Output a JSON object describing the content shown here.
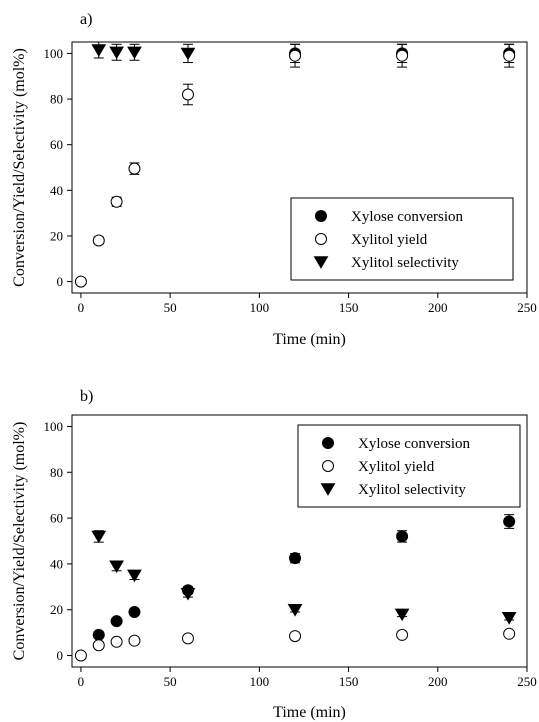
{
  "chart_data": [
    {
      "type": "scatter",
      "panel_label": "a)",
      "xlabel": "Time (min)",
      "ylabel": "Conversion/Yield/Selectivity (mol%)",
      "xlim": [
        -5,
        250
      ],
      "ylim": [
        -5,
        105
      ],
      "xticks": [
        0,
        50,
        100,
        150,
        200,
        250
      ],
      "yticks": [
        0,
        20,
        40,
        60,
        80,
        100
      ],
      "legend_position": "lower-right",
      "series": [
        {
          "name": "Xylose conversion",
          "marker": "filled-circle",
          "points": [
            {
              "x": 120,
              "y": 100,
              "err": 4
            },
            {
              "x": 180,
              "y": 100,
              "err": 4
            },
            {
              "x": 240,
              "y": 100,
              "err": 4
            }
          ]
        },
        {
          "name": "Xylitol yield",
          "marker": "open-circle",
          "points": [
            {
              "x": 0,
              "y": 0,
              "err": 0
            },
            {
              "x": 10,
              "y": 18,
              "err": 1.5
            },
            {
              "x": 20,
              "y": 35,
              "err": 2
            },
            {
              "x": 30,
              "y": 49.5,
              "err": 2.5
            },
            {
              "x": 60,
              "y": 82,
              "err": 4.5
            },
            {
              "x": 120,
              "y": 99,
              "err": 5
            },
            {
              "x": 180,
              "y": 99,
              "err": 5
            },
            {
              "x": 240,
              "y": 99,
              "err": 5
            }
          ]
        },
        {
          "name": "Xylitol selectivity",
          "marker": "filled-triangle-down",
          "points": [
            {
              "x": 10,
              "y": 101.5,
              "err": 3.5
            },
            {
              "x": 20,
              "y": 100.5,
              "err": 3.5
            },
            {
              "x": 30,
              "y": 100.5,
              "err": 3.5
            },
            {
              "x": 60,
              "y": 100,
              "err": 4
            }
          ]
        }
      ]
    },
    {
      "type": "scatter",
      "panel_label": "b)",
      "xlabel": "Time (min)",
      "ylabel": "Conversion/Yield/Selectivity (mol%)",
      "xlim": [
        -5,
        250
      ],
      "ylim": [
        -5,
        105
      ],
      "xticks": [
        0,
        50,
        100,
        150,
        200,
        250
      ],
      "yticks": [
        0,
        20,
        40,
        60,
        80,
        100
      ],
      "legend_position": "top-right",
      "series": [
        {
          "name": "Xylose conversion",
          "marker": "filled-circle",
          "points": [
            {
              "x": 10,
              "y": 9,
              "err": 0.8
            },
            {
              "x": 20,
              "y": 15,
              "err": 1
            },
            {
              "x": 30,
              "y": 19,
              "err": 1
            },
            {
              "x": 60,
              "y": 28.5,
              "err": 1.5
            },
            {
              "x": 120,
              "y": 42.5,
              "err": 2
            },
            {
              "x": 180,
              "y": 52,
              "err": 2.5
            },
            {
              "x": 240,
              "y": 58.5,
              "err": 3
            }
          ]
        },
        {
          "name": "Xylitol yield",
          "marker": "open-circle",
          "points": [
            {
              "x": 0,
              "y": 0,
              "err": 0
            },
            {
              "x": 10,
              "y": 4.5,
              "err": 0
            },
            {
              "x": 20,
              "y": 6,
              "err": 0
            },
            {
              "x": 30,
              "y": 6.5,
              "err": 0
            },
            {
              "x": 60,
              "y": 7.5,
              "err": 0
            },
            {
              "x": 120,
              "y": 8.5,
              "err": 0
            },
            {
              "x": 180,
              "y": 9,
              "err": 0
            },
            {
              "x": 240,
              "y": 9.5,
              "err": 0
            }
          ]
        },
        {
          "name": "Xylitol selectivity",
          "marker": "filled-triangle-down",
          "points": [
            {
              "x": 10,
              "y": 52,
              "err": 2.5
            },
            {
              "x": 20,
              "y": 39,
              "err": 2
            },
            {
              "x": 30,
              "y": 35,
              "err": 1.8
            },
            {
              "x": 60,
              "y": 27,
              "err": 1.5
            },
            {
              "x": 120,
              "y": 20,
              "err": 1
            },
            {
              "x": 180,
              "y": 18,
              "err": 1
            },
            {
              "x": 240,
              "y": 16.5,
              "err": 1
            }
          ]
        }
      ]
    }
  ]
}
